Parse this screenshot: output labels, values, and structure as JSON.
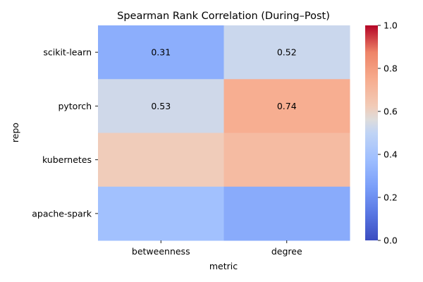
{
  "chart_data": {
    "type": "heatmap",
    "title": "Spearman Rank Correlation (During–Post)",
    "xlabel": "metric",
    "ylabel": "repo",
    "x_categories": [
      "betweenness",
      "degree"
    ],
    "y_categories": [
      "scikit-learn",
      "pytorch",
      "kubernetes",
      "apache-spark"
    ],
    "values": [
      [
        0.31,
        0.52
      ],
      [
        0.53,
        0.74
      ],
      [
        0.62,
        0.69
      ],
      [
        0.39,
        0.3
      ]
    ],
    "labels": [
      [
        "0.31",
        "0.52"
      ],
      [
        "0.53",
        "0.74"
      ],
      [
        "",
        ""
      ],
      [
        "",
        ""
      ]
    ],
    "vmin": 0.0,
    "vmax": 1.0,
    "colormap": "coolwarm",
    "colorbar_ticks": [
      "0.0",
      "0.2",
      "0.4",
      "0.6",
      "0.8",
      "1.0"
    ]
  }
}
